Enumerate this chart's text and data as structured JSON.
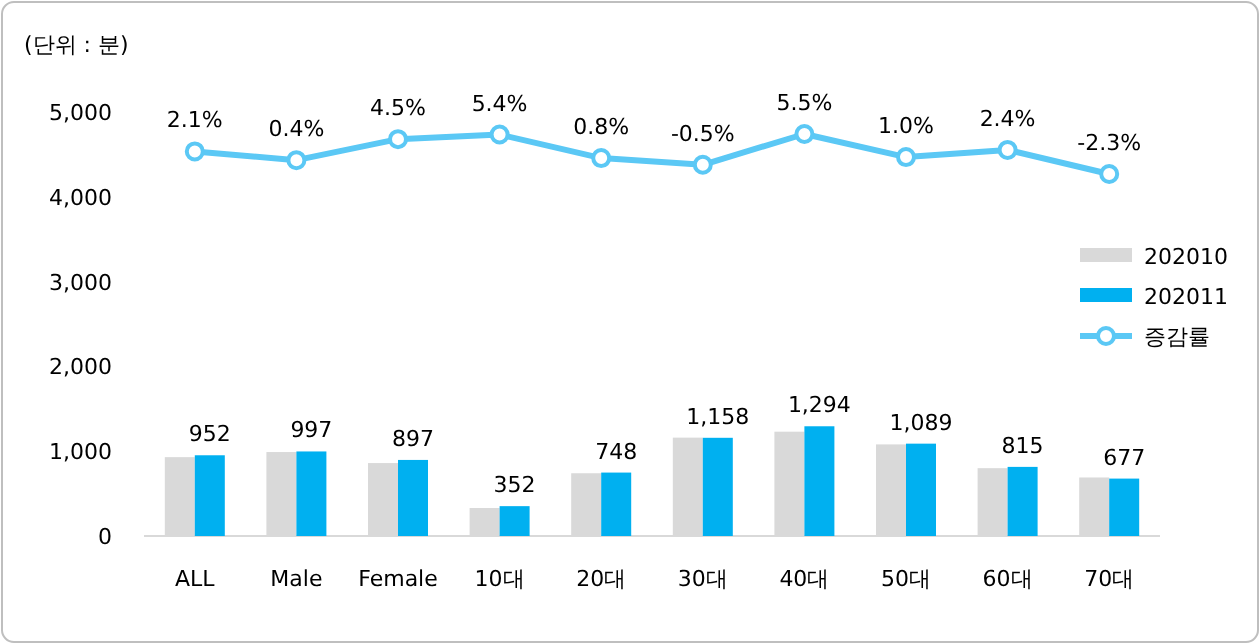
{
  "chart_data": {
    "type": "bar",
    "ylabel": "(단위 : 분)",
    "categories": [
      "ALL",
      "Male",
      "Female",
      "10대",
      "20대",
      "30대",
      "40대",
      "50대",
      "60대",
      "70대"
    ],
    "ylim": [
      0,
      5000
    ],
    "yticks": [
      {
        "value": 0,
        "label": "0"
      },
      {
        "value": 1000,
        "label": "1,000"
      },
      {
        "value": 2000,
        "label": "2,000"
      },
      {
        "value": 3000,
        "label": "3,000"
      },
      {
        "value": 4000,
        "label": "4,000"
      },
      {
        "value": 5000,
        "label": "5,000"
      }
    ],
    "legend": "right",
    "tick_labels": "xy",
    "series": [
      {
        "name": "202010",
        "color": "#d9d9d9",
        "values": [
          930,
          990,
          860,
          330,
          740,
          1160,
          1230,
          1080,
          800,
          690
        ]
      },
      {
        "name": "202011",
        "color": "#00b0f0",
        "values": [
          952,
          997,
          897,
          352,
          748,
          1158,
          1294,
          1089,
          815,
          677
        ],
        "value_labels": [
          "952",
          "997",
          "897",
          "352",
          "748",
          "1,158",
          "1,294",
          "1,089",
          "815",
          "677"
        ]
      },
      {
        "name": "증감률",
        "type": "line",
        "axis": "y2",
        "color": "#5bc8f5",
        "marker": "circle",
        "values": [
          2.1,
          0.4,
          4.5,
          5.4,
          0.8,
          -0.5,
          5.5,
          1.0,
          2.4,
          -2.3
        ],
        "value_labels": [
          "2.1%",
          "0.4%",
          "4.5%",
          "5.4%",
          "0.8%",
          "-0.5%",
          "5.5%",
          "1.0%",
          "2.4%",
          "-2.3%"
        ]
      }
    ]
  }
}
